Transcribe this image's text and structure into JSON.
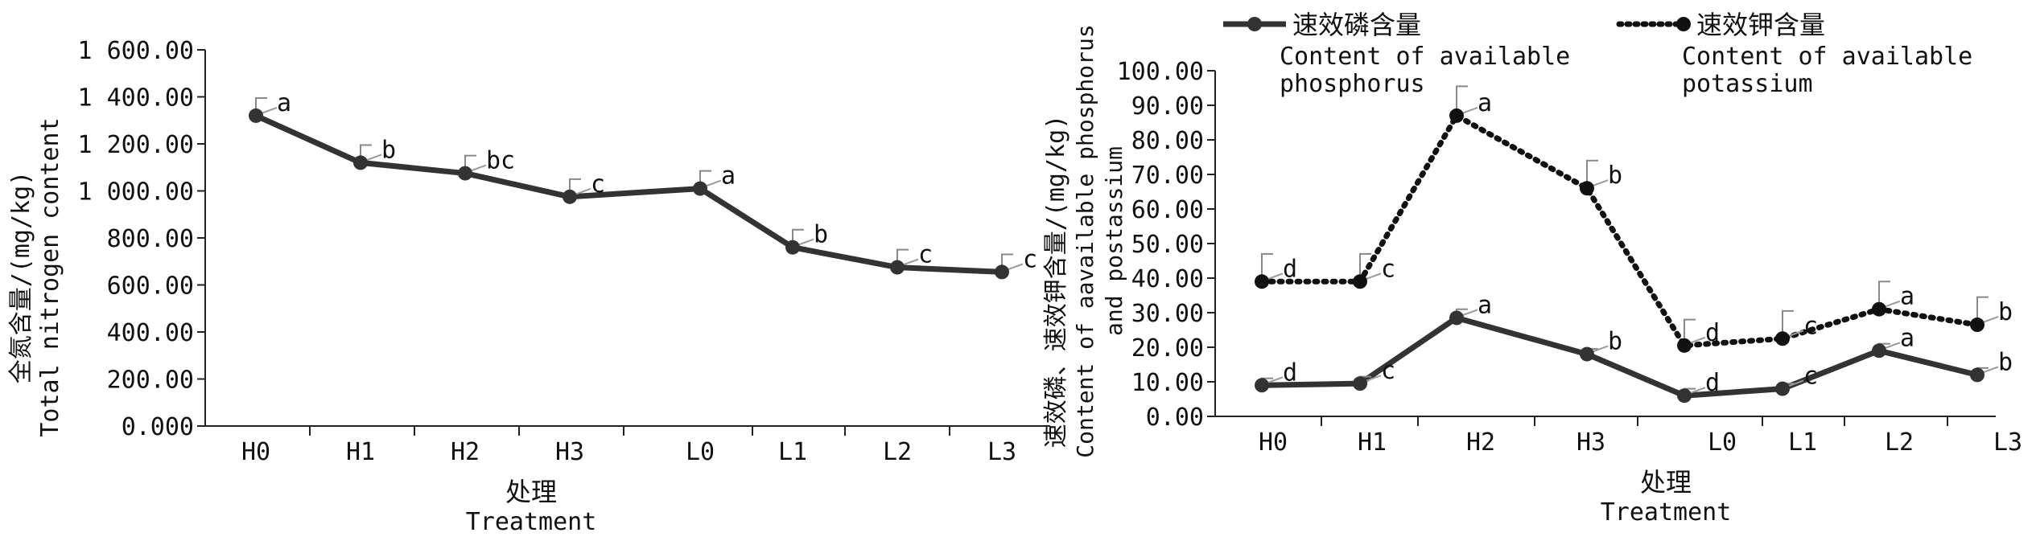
{
  "chart_data": [
    {
      "type": "line",
      "title": "",
      "ylabel": "全氮含量/(mg/kg)",
      "ylabel_en": "Total nitrogen content",
      "xlabel": "处理",
      "xlabel_en": "Treatment",
      "ylim": [
        0,
        1600
      ],
      "yticks": [
        "0.000",
        "200.00",
        "400.00",
        "600.00",
        "800.00",
        "1 000.00",
        "1 200.00",
        "1 400.00",
        "1 600.00"
      ],
      "categories": [
        "H0",
        "H1",
        "H2",
        "H3",
        "L0",
        "L1",
        "L2",
        "L3"
      ],
      "series": [
        {
          "name": "",
          "color": "#333333",
          "style": "solid",
          "values": [
            1320,
            1120,
            1075,
            975,
            1010,
            760,
            675,
            655
          ],
          "error": [
            75,
            75,
            75,
            75,
            75,
            75,
            75,
            75
          ],
          "labels": [
            "a",
            "b",
            "bc",
            "c",
            "a",
            "b",
            "c",
            "c"
          ]
        }
      ]
    },
    {
      "type": "line",
      "title": "",
      "ylabel": "速效磷、速效钾含量/(mg/kg)",
      "ylabel_en": "Content of aavailable phosphorus and postassium",
      "xlabel": "处理",
      "xlabel_en": "Treatment",
      "ylim": [
        0,
        100
      ],
      "yticks": [
        "0.00",
        "10.00",
        "20.00",
        "30.00",
        "40.00",
        "50.00",
        "60.00",
        "70.00",
        "80.00",
        "90.00",
        "100.00"
      ],
      "categories": [
        "H0",
        "H1",
        "H2",
        "H3",
        "L0",
        "L1",
        "L2",
        "L3"
      ],
      "legend_position": "top",
      "series": [
        {
          "name": "速效磷含量",
          "name_en": "Content of available phosphorus",
          "color": "#333333",
          "style": "solid",
          "values": [
            9,
            9.5,
            28.5,
            18,
            6,
            8,
            19,
            12
          ],
          "error": [
            2,
            2,
            2.5,
            1.5,
            2,
            1.5,
            2,
            2
          ],
          "labels": [
            "d",
            "c",
            "a",
            "b",
            "d",
            "c",
            "a",
            "b"
          ]
        },
        {
          "name": "速效钾含量",
          "name_en": "Content of available potassium",
          "color": "#111111",
          "style": "dotted",
          "values": [
            39,
            39,
            87,
            66,
            20.5,
            22.5,
            31,
            26.5
          ],
          "error": [
            8,
            8,
            8.5,
            8,
            7.5,
            8,
            8,
            8
          ],
          "labels": [
            "d",
            "c",
            "a",
            "b",
            "d",
            "c",
            "a",
            "b"
          ]
        }
      ]
    }
  ]
}
